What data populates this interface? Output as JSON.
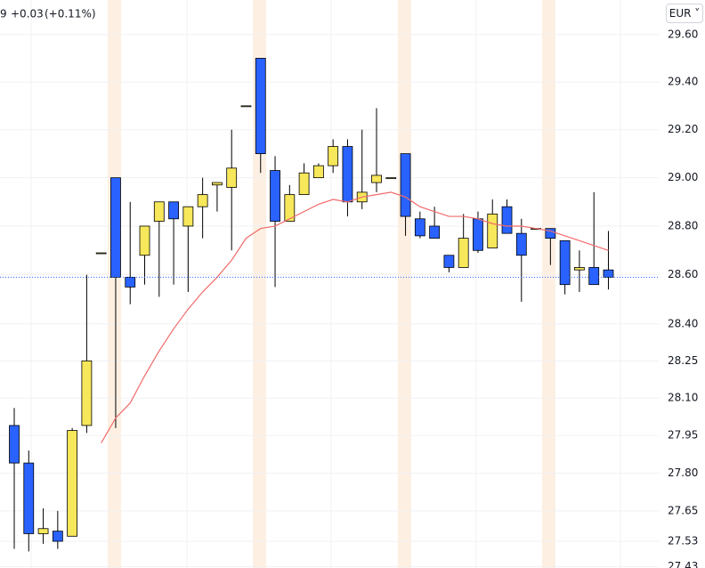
{
  "header": {
    "price_fragment": "9",
    "change": "+0.03",
    "change_percent": "(+0.11%)",
    "currency": "EUR"
  },
  "chart_data": {
    "type": "candlestick",
    "log_scale": true,
    "grid": true,
    "up_color": "#f7e75a",
    "down_color": "#2962ff",
    "open": [
      27.99,
      27.84,
      27.56,
      27.57,
      27.55,
      27.99,
      28.69,
      29.0,
      28.59,
      28.68,
      28.82,
      28.9,
      28.8,
      28.88,
      28.97,
      28.96,
      29.3,
      29.5,
      29.03,
      28.82,
      28.93,
      29.0,
      29.05,
      29.13,
      28.9,
      28.98,
      29.0,
      29.1,
      28.83,
      28.8,
      28.68,
      28.63,
      28.83,
      28.71,
      28.88,
      28.77,
      28.79,
      28.79,
      28.74,
      28.62,
      28.63,
      28.62
    ],
    "high": [
      28.06,
      27.89,
      27.66,
      27.65,
      27.98,
      28.6,
      28.69,
      29.0,
      28.9,
      28.8,
      28.9,
      28.9,
      28.88,
      29.0,
      28.98,
      29.2,
      29.3,
      29.5,
      29.09,
      28.97,
      29.06,
      29.06,
      29.16,
      29.16,
      29.2,
      29.29,
      29.0,
      29.1,
      28.86,
      28.88,
      28.68,
      28.85,
      28.86,
      28.91,
      28.91,
      28.83,
      28.79,
      28.79,
      28.74,
      28.7,
      28.94,
      28.78
    ],
    "low": [
      27.5,
      27.49,
      27.52,
      27.5,
      27.55,
      27.96,
      28.69,
      27.98,
      28.48,
      28.56,
      28.51,
      28.56,
      28.53,
      28.75,
      28.86,
      28.7,
      29.3,
      29.02,
      28.55,
      28.82,
      28.93,
      29.0,
      29.02,
      28.84,
      28.87,
      28.94,
      29.0,
      28.76,
      28.75,
      28.75,
      28.61,
      28.63,
      28.69,
      28.71,
      28.77,
      28.49,
      28.79,
      28.64,
      28.52,
      28.53,
      28.56,
      28.54
    ],
    "close": [
      27.84,
      27.56,
      27.58,
      27.53,
      27.97,
      28.25,
      28.69,
      28.59,
      28.55,
      28.8,
      28.9,
      28.83,
      28.88,
      28.93,
      28.98,
      29.04,
      29.3,
      29.1,
      28.82,
      28.93,
      29.02,
      29.05,
      29.13,
      28.9,
      28.94,
      29.01,
      29.0,
      28.84,
      28.76,
      28.75,
      28.63,
      28.75,
      28.7,
      28.85,
      28.77,
      28.68,
      28.79,
      28.75,
      28.56,
      28.63,
      28.56,
      28.59
    ],
    "moving_average": {
      "color": "#f26b6b",
      "values": [
        null,
        null,
        null,
        null,
        null,
        null,
        27.92,
        28.02,
        28.08,
        28.19,
        28.29,
        28.38,
        28.46,
        28.53,
        28.59,
        28.66,
        28.75,
        28.79,
        28.8,
        28.83,
        28.86,
        28.89,
        28.91,
        28.9,
        28.92,
        28.93,
        28.94,
        28.92,
        28.88,
        28.86,
        28.84,
        28.84,
        28.83,
        28.81,
        28.8,
        28.8,
        28.79,
        28.78,
        28.76,
        28.74,
        28.72,
        28.7
      ]
    },
    "last_price": 28.59,
    "ylim": [
      27.425,
      29.747
    ],
    "yticks": [
      {
        "value": 29.6,
        "label": "29.60"
      },
      {
        "value": 29.4,
        "label": "29.40"
      },
      {
        "value": 29.2,
        "label": "29.20"
      },
      {
        "value": 29.0,
        "label": "29.00"
      },
      {
        "value": 28.8,
        "label": "28.80"
      },
      {
        "value": 28.6,
        "label": "28.60"
      },
      {
        "value": 28.4,
        "label": "28.40"
      },
      28.25,
      {
        "value": 28.1,
        "label": "28.10"
      },
      27.95,
      {
        "value": 27.8,
        "label": "27.80"
      },
      27.65,
      27.53,
      27.43
    ]
  }
}
